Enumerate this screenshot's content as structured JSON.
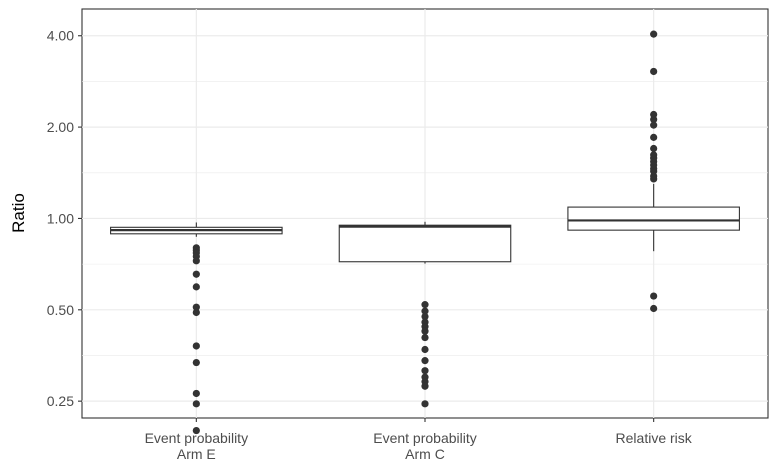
{
  "chart_data": {
    "type": "boxplot",
    "title": "",
    "xlabel": "",
    "ylabel": "Ratio",
    "y_scale": "log2",
    "ylim": [
      0.22,
      4.9
    ],
    "y_ticks": [
      0.25,
      0.5,
      1.0,
      2.0,
      4.0
    ],
    "y_tick_labels": [
      "0.25",
      "0.50",
      "1.00",
      "2.00",
      "4.00"
    ],
    "grid": true,
    "categories": [
      {
        "line1": "Event probability",
        "line2": "Arm E"
      },
      {
        "line1": "Event probability",
        "line2": "Arm C"
      },
      {
        "line1": "Relative risk",
        "line2": ""
      }
    ],
    "boxes": [
      {
        "whisker_low": 0.87,
        "q1": 0.89,
        "median": 0.915,
        "q3": 0.935,
        "whisker_high": 0.97,
        "outliers": [
          0.8,
          0.785,
          0.77,
          0.75,
          0.725,
          0.655,
          0.595,
          0.51,
          0.49,
          0.38,
          0.335,
          0.265,
          0.245,
          0.2
        ]
      },
      {
        "whisker_low": 0.71,
        "q1": 0.72,
        "median": 0.94,
        "q3": 0.95,
        "whisker_high": 0.975,
        "outliers": [
          0.52,
          0.495,
          0.475,
          0.455,
          0.44,
          0.425,
          0.405,
          0.37,
          0.34,
          0.315,
          0.3,
          0.29,
          0.28,
          0.245
        ]
      },
      {
        "whisker_low": 0.78,
        "q1": 0.915,
        "median": 0.985,
        "q3": 1.09,
        "whisker_high": 1.3,
        "outliers": [
          1.35,
          1.38,
          1.43,
          1.46,
          1.5,
          1.54,
          1.58,
          1.62,
          1.7,
          1.85,
          2.03,
          2.12,
          2.2,
          3.05,
          4.05,
          0.555,
          0.505
        ]
      }
    ]
  }
}
